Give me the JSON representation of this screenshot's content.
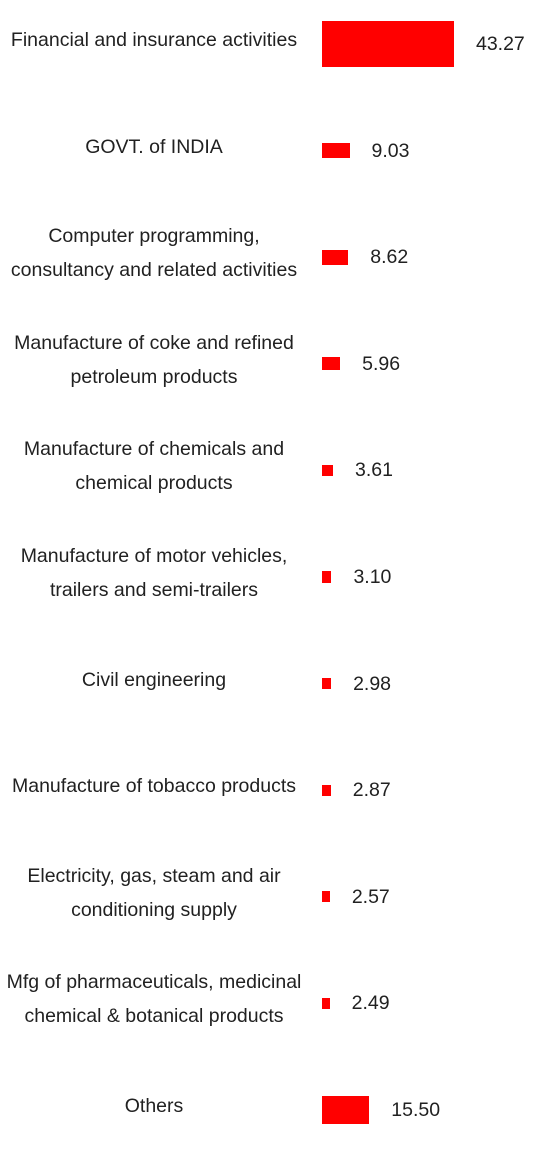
{
  "chart_data": {
    "type": "bar",
    "orientation": "horizontal",
    "bar_color": "#ff0000",
    "categories": [
      "Financial and insurance activities",
      "GOVT. of INDIA",
      "Computer programming, consultancy and related activities",
      "Manufacture of coke and refined petroleum products",
      "Manufacture of chemicals and chemical products",
      "Manufacture of motor vehicles, trailers and semi-trailers",
      "Civil engineering",
      "Manufacture of tobacco products",
      "Electricity, gas, steam and air conditioning supply",
      "Mfg of pharmaceuticals, medicinal chemical & botanical products",
      "Others"
    ],
    "values": [
      43.27,
      9.03,
      8.62,
      5.96,
      3.61,
      3.1,
      2.98,
      2.87,
      2.57,
      2.49,
      15.5
    ],
    "value_labels": [
      "43.27",
      "9.03",
      "8.62",
      "5.96",
      "3.61",
      "3.10",
      "2.98",
      "2.87",
      "2.57",
      "2.49",
      "15.50"
    ],
    "title": "",
    "xlabel": "",
    "ylabel": "",
    "grid": false
  }
}
